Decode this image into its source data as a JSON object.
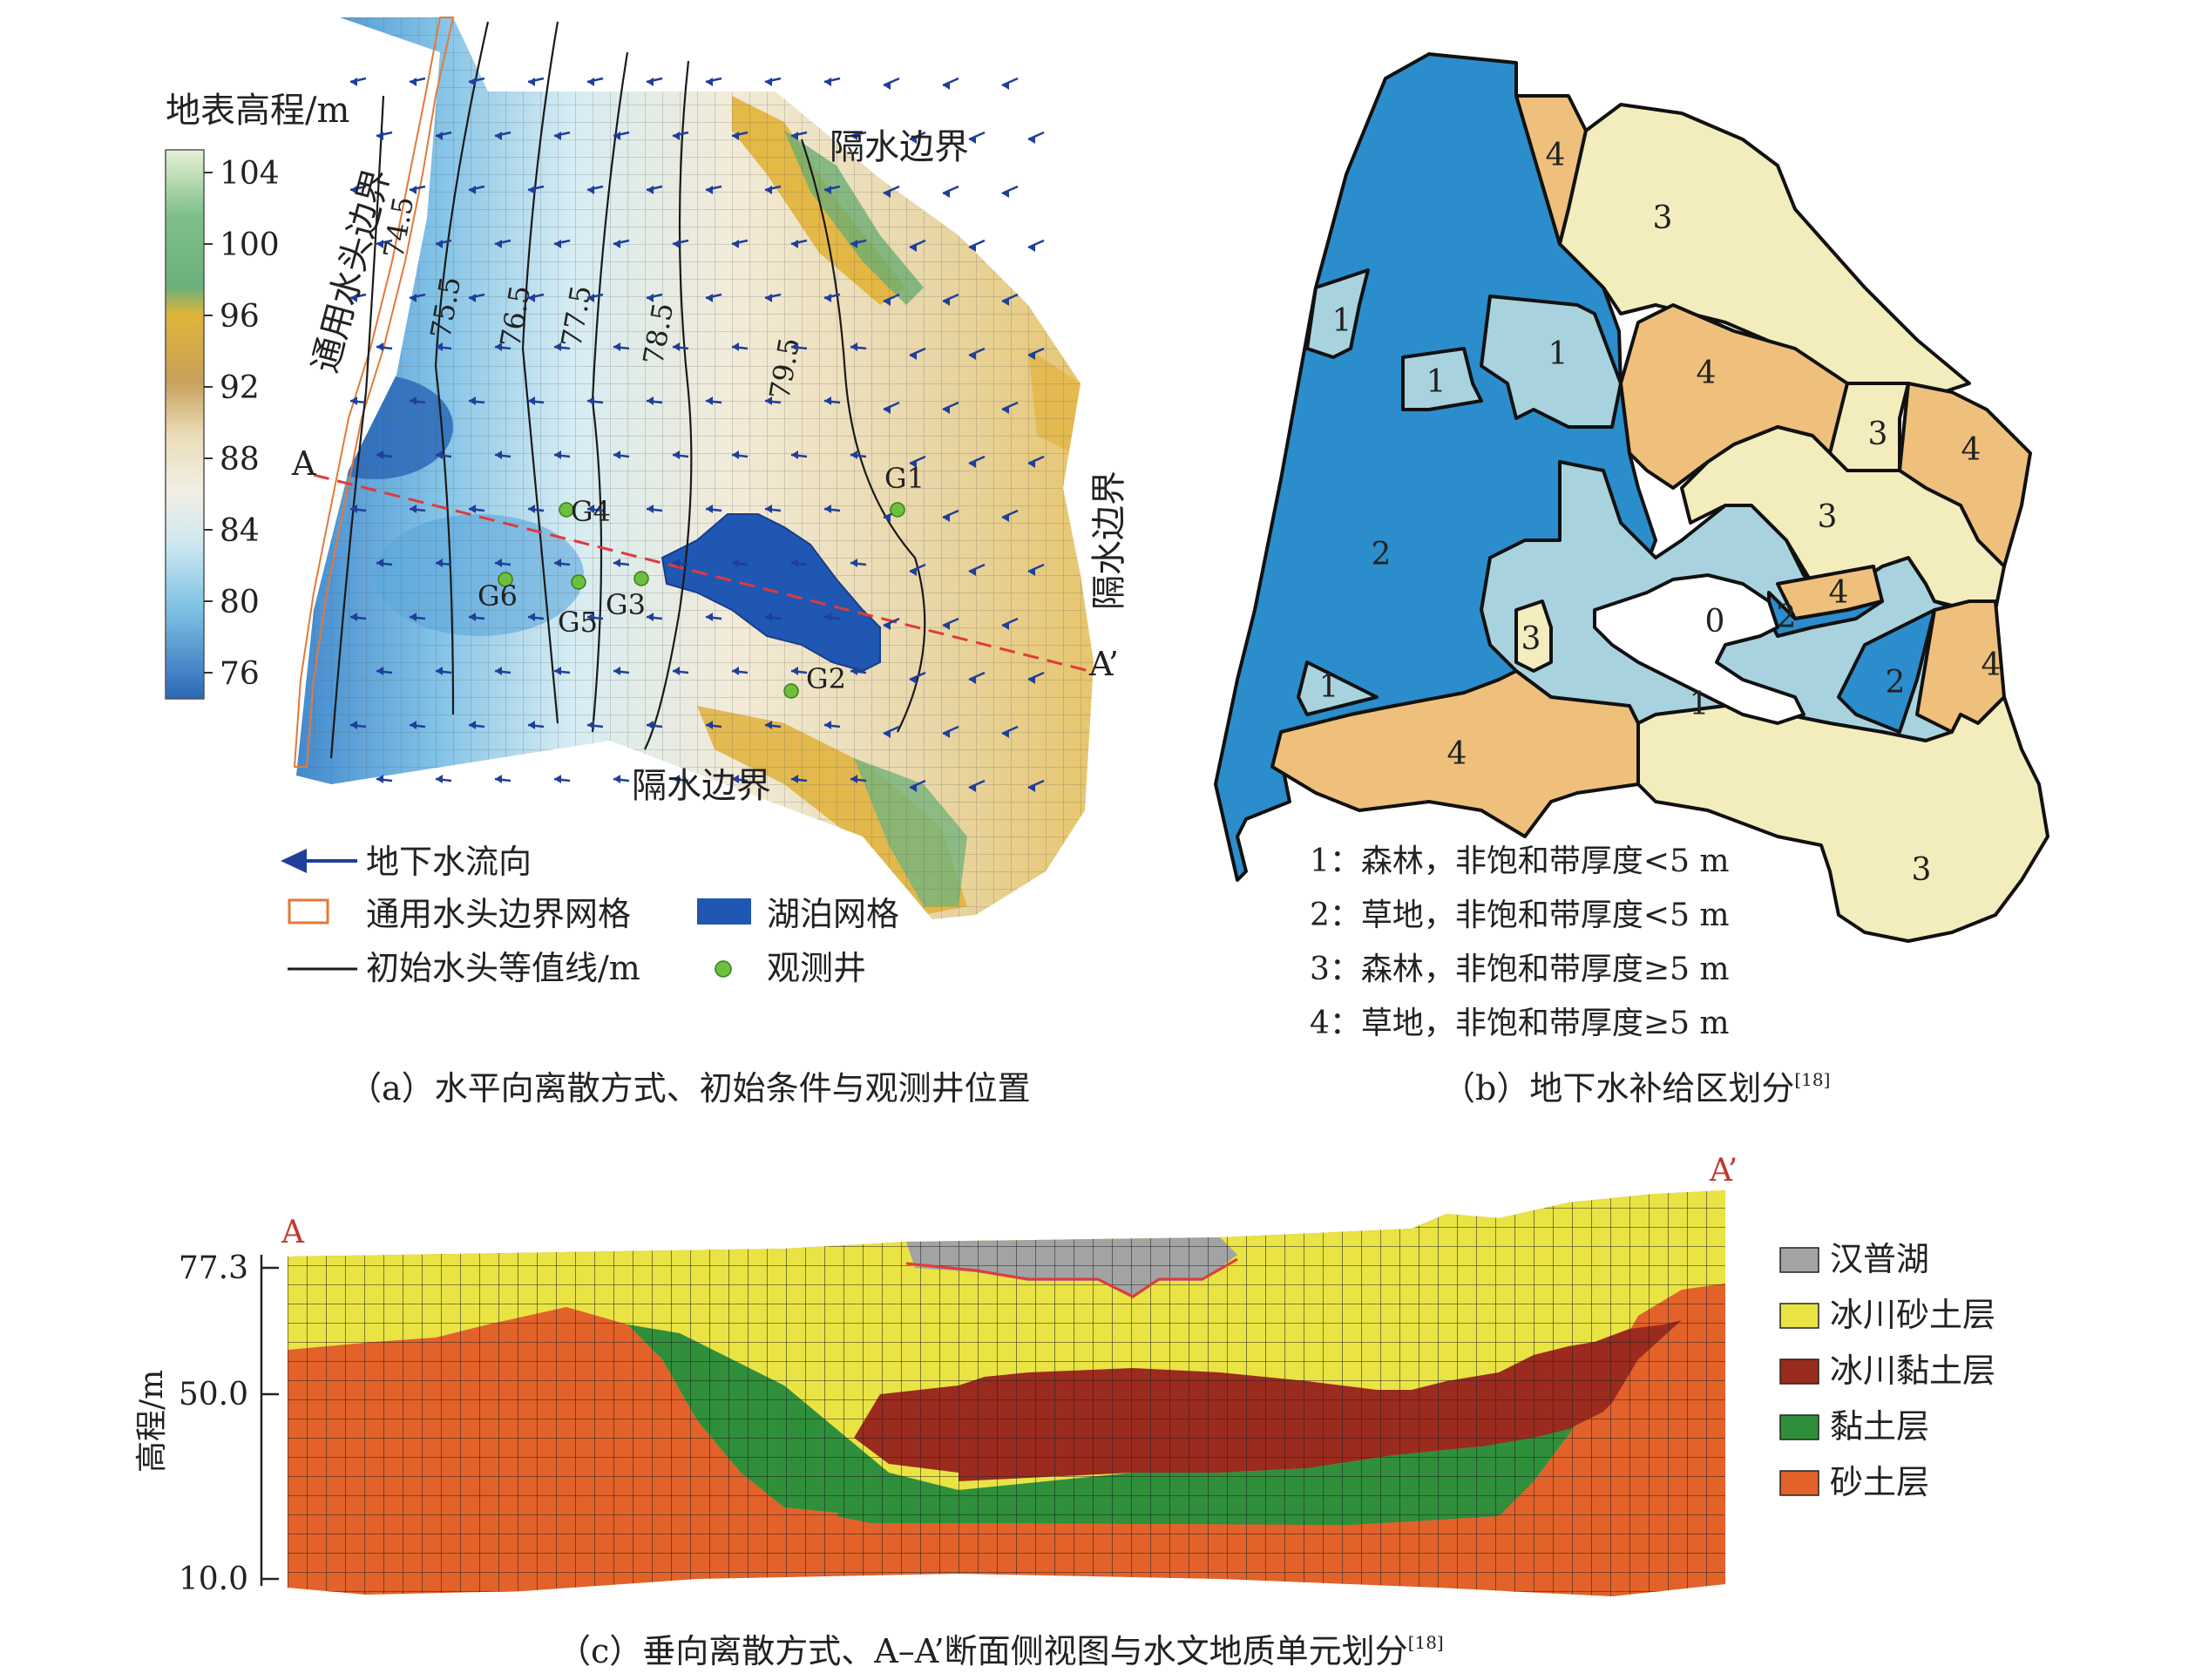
{
  "panel_a": {
    "colorbar_title": "地表高程/m",
    "colorbar_ticks": [
      "104",
      "100",
      "96",
      "92",
      "88",
      "84",
      "80",
      "76"
    ],
    "colorbar_colors": [
      "#d8ecc8",
      "#6fb77c",
      "#e3b33b",
      "#d9c08f",
      "#f5eedd",
      "#d9eef4",
      "#7cc3e6",
      "#2f6fbf"
    ],
    "boundary_labels": {
      "general_head": "通用水头边界",
      "no_flow_top": "隔水边界",
      "no_flow_right": "隔水边界",
      "no_flow_bottom": "隔水边界"
    },
    "contours": [
      "74.5",
      "75.5",
      "76.5",
      "77.5",
      "78.5",
      "79.5"
    ],
    "wells": [
      "G1",
      "G2",
      "G3",
      "G4",
      "G5",
      "G6"
    ],
    "section_start": "A",
    "section_end": "A’",
    "legend": {
      "flow": "地下水流向",
      "ghb_grid": "通用水头边界网格",
      "lake_grid": "湖泊网格",
      "contour": "初始水头等值线/m",
      "well": "观测井"
    },
    "caption": "（a）水平向离散方式、初始条件与观测井位置"
  },
  "panel_b": {
    "zone_labels": [
      "4",
      "3",
      "1",
      "1",
      "1",
      "4",
      "3",
      "4",
      "2",
      "3",
      "4",
      "0",
      "2",
      "2",
      "3",
      "1",
      "4",
      "1",
      "4",
      "3"
    ],
    "zone_colors": {
      "0": "#ffffff",
      "1": "#a8d3de",
      "2": "#2b8dcb",
      "3": "#f3ecbd",
      "4": "#eec07c"
    },
    "legend": [
      "1：森林，非饱和带厚度<5 m",
      "2：草地，非饱和带厚度<5 m",
      "3：森林，非饱和带厚度≥5 m",
      "4：草地，非饱和带厚度≥5 m"
    ],
    "caption": "（b）地下水补给区划分",
    "caption_ref": "[18]"
  },
  "panel_c": {
    "ylabel": "高程/m",
    "yticks": [
      "77.3",
      "50.0",
      "10.0"
    ],
    "start_label": "A",
    "end_label": "A’",
    "legend": [
      {
        "label": "汉普湖",
        "color": "#a3a3a3"
      },
      {
        "label": "冰川砂土层",
        "color": "#e9e344"
      },
      {
        "label": "冰川黏土层",
        "color": "#9b2b1e"
      },
      {
        "label": "黏土层",
        "color": "#2f8f3a"
      },
      {
        "label": "砂土层",
        "color": "#e2622a"
      }
    ],
    "caption": "（c）垂向离散方式、A–A’断面侧视图与水文地质单元划分",
    "caption_ref": "[18]"
  }
}
